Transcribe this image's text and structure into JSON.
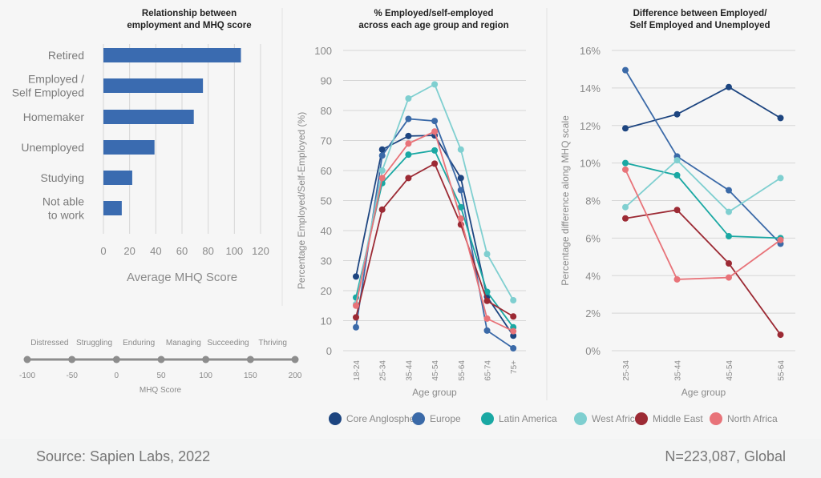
{
  "footer": {
    "source": "Source: Sapien Labs, 2022",
    "sample": "N=223,087, Global"
  },
  "mhq_scale": {
    "stages": [
      "Distressed",
      "Struggling",
      "Enduring",
      "Managing",
      "Succeeding",
      "Thriving"
    ],
    "ticks": [
      "-100",
      "-50",
      "0",
      "50",
      "100",
      "150",
      "200"
    ],
    "label": "MHQ Score"
  },
  "colors": {
    "bar": "#3a6bb0",
    "Core Anglosphere": "#1d4580",
    "Europe": "#3b6aa8",
    "Latin America": "#1aa8a3",
    "West Africa": "#7fcfd0",
    "Middle East": "#9c2a34",
    "North Africa": "#e87379"
  },
  "chart_data": [
    {
      "type": "bar",
      "orientation": "horizontal",
      "title": "Relationship between employment and MHQ score",
      "title_lines": [
        "Relationship between",
        "employment and MHQ score"
      ],
      "categories": [
        "Retired",
        "Employed / Self Employed",
        "Homemaker",
        "Unemployed",
        "Studying",
        "Not able to work"
      ],
      "category_lines": [
        [
          "Retired"
        ],
        [
          "Employed /",
          "Self Employed"
        ],
        [
          "Homemaker"
        ],
        [
          "Unemployed"
        ],
        [
          "Studying"
        ],
        [
          "Not able",
          "to work"
        ]
      ],
      "values": [
        105,
        76,
        69,
        39,
        22,
        14
      ],
      "xlabel": "Average MHQ Score",
      "xlim": [
        0,
        120
      ],
      "xticks": [
        "0",
        "20",
        "40",
        "60",
        "80",
        "100",
        "120"
      ],
      "grid": true
    },
    {
      "type": "line",
      "title": "% Employed/self-employed across each age group and region",
      "title_lines": [
        "% Employed/self-employed",
        "across each age group and region"
      ],
      "categories": [
        "18-24",
        "25-34",
        "35-44",
        "45-54",
        "55-64",
        "65-74",
        "75+"
      ],
      "xlabel": "Age group",
      "ylabel": "Percentage Employed/Self-Employed (%)",
      "ylim": [
        0,
        100
      ],
      "yticks": [
        "0",
        "10",
        "20",
        "30",
        "40",
        "50",
        "60",
        "70",
        "80",
        "90",
        "100"
      ],
      "grid": true,
      "series": [
        {
          "name": "Core Anglosphere",
          "values": [
            24.7,
            67,
            71.5,
            71.7,
            57.5,
            18,
            5
          ]
        },
        {
          "name": "Europe",
          "values": [
            7.8,
            65,
            77.2,
            76.5,
            53.5,
            6.7,
            0.8
          ]
        },
        {
          "name": "Latin America",
          "values": [
            17.7,
            55.8,
            65.3,
            66.7,
            47.8,
            19.6,
            7.8
          ]
        },
        {
          "name": "West Africa",
          "values": [
            15.5,
            60,
            84,
            88.7,
            67,
            32.2,
            16.8
          ]
        },
        {
          "name": "Middle East",
          "values": [
            11.1,
            47,
            57.5,
            62.3,
            42,
            16.6,
            11.4
          ]
        },
        {
          "name": "North Africa",
          "values": [
            15,
            57.5,
            69,
            73,
            44,
            10.7,
            6.5
          ]
        }
      ]
    },
    {
      "type": "line",
      "title": "Difference between Employed/ Self Employed and Unemployed",
      "title_lines": [
        "Difference between Employed/",
        "Self Employed and Unemployed"
      ],
      "categories": [
        "25-34",
        "35-44",
        "45-54",
        "55-64"
      ],
      "xlabel": "Age group",
      "ylabel": "Percentage difference along MHQ scale",
      "ylim": [
        0,
        16
      ],
      "yticks": [
        "0%",
        "2%",
        "4%",
        "6%",
        "8%",
        "10%",
        "12%",
        "14%",
        "16%"
      ],
      "grid": true,
      "series": [
        {
          "name": "Core Anglosphere",
          "values": [
            11.85,
            12.6,
            14.05,
            12.4
          ]
        },
        {
          "name": "Europe",
          "values": [
            14.95,
            10.35,
            8.55,
            5.7
          ]
        },
        {
          "name": "Latin America",
          "values": [
            10,
            9.35,
            6.1,
            6.0
          ]
        },
        {
          "name": "West Africa",
          "values": [
            7.65,
            10.15,
            7.4,
            9.2
          ]
        },
        {
          "name": "Middle East",
          "values": [
            7.05,
            7.5,
            4.65,
            0.85
          ]
        },
        {
          "name": "North Africa",
          "values": [
            9.65,
            3.8,
            3.9,
            5.9
          ]
        }
      ]
    }
  ],
  "legend": {
    "position": "bottom",
    "items": [
      "Core Anglosphere",
      "Europe",
      "Latin America",
      "West Africa",
      "Middle East",
      "North Africa"
    ]
  }
}
